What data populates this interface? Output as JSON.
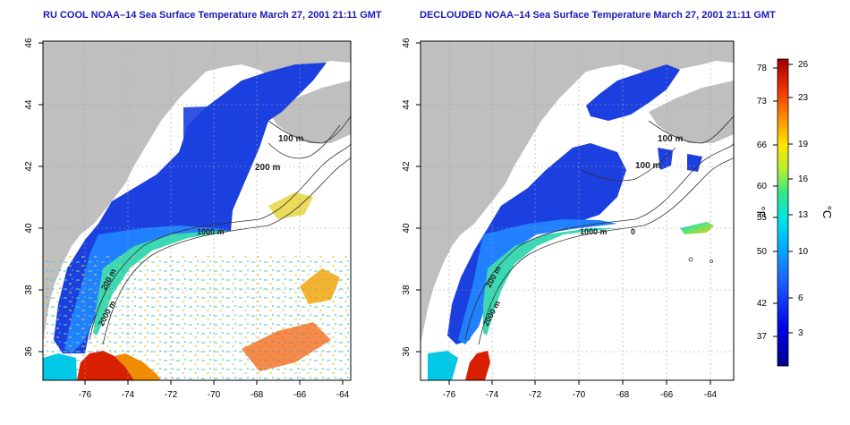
{
  "titles": {
    "left": "RU COOL NOAA–14 Sea Surface Temperature March 27, 2001 21:11 GMT",
    "right": "DECLOUDED NOAA–14 Sea Surface Temperature March 27, 2001 21:11 GMT"
  },
  "axes": {
    "lon_ticks": [
      "-76",
      "-74",
      "-72",
      "-70",
      "-68",
      "-66",
      "-64"
    ],
    "lat_ticks": [
      "46",
      "44",
      "42",
      "40",
      "38",
      "36"
    ]
  },
  "contour_labels": {
    "c100": "100 m",
    "c200": "200 m",
    "c1000": "1000 m",
    "c2000": "2000 m",
    "zero": "0"
  },
  "colorbar": {
    "fahrenheit_unit": "°F",
    "celsius_unit": "°C",
    "fahrenheit_ticks": [
      "78",
      "73",
      "66",
      "60",
      "55",
      "50",
      "42",
      "37"
    ],
    "celsius_ticks": [
      "26",
      "23",
      "19",
      "16",
      "13",
      "10",
      "6",
      "3"
    ]
  },
  "colors": {
    "land": "#bfbfbf",
    "cold": "#1030d8",
    "warm": "#c81800",
    "title": "#1a1ab4"
  }
}
